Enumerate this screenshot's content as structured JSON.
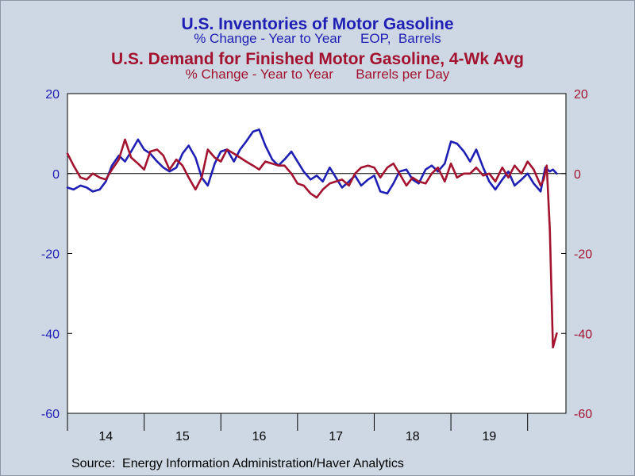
{
  "titles": {
    "line1": "U.S. Inventories of Motor Gasoline",
    "line2": "% Change - Year to Year     EOP,  Barrels",
    "line3": "U.S. Demand for Finished Motor Gasoline, 4-Wk Avg",
    "line4": "% Change - Year to Year      Barrels per Day"
  },
  "source": "Source:  Energy Information Administration/Haver Analytics",
  "colors": {
    "background": "#cdd8e4",
    "plot_area": "#ffffff",
    "inventories": "#1f1fb4",
    "demand": "#a3122f"
  },
  "chart_data": {
    "type": "line",
    "xlim": [
      2014.0,
      2020.5
    ],
    "x_ticks": [
      2014,
      2015,
      2016,
      2017,
      2018,
      2019,
      2020
    ],
    "x_labels": [
      "14",
      "15",
      "16",
      "17",
      "18",
      "19"
    ],
    "y_left": {
      "range": [
        -60,
        20
      ],
      "ticks": [
        20,
        0,
        -20,
        -40,
        -60
      ]
    },
    "y_right": {
      "range": [
        -60,
        20
      ],
      "ticks": [
        20,
        0,
        -20,
        -40,
        -60
      ]
    },
    "zero_line": true,
    "grid": false,
    "series": [
      {
        "color": "#1f1fb4",
        "axis": "left",
        "x": [
          2014.0,
          2014.08,
          2014.17,
          2014.25,
          2014.33,
          2014.42,
          2014.5,
          2014.58,
          2014.67,
          2014.75,
          2014.83,
          2014.92,
          2015.0,
          2015.08,
          2015.17,
          2015.25,
          2015.33,
          2015.42,
          2015.5,
          2015.58,
          2015.67,
          2015.75,
          2015.83,
          2015.92,
          2016.0,
          2016.08,
          2016.17,
          2016.25,
          2016.33,
          2016.42,
          2016.5,
          2016.58,
          2016.67,
          2016.75,
          2016.83,
          2016.92,
          2017.0,
          2017.08,
          2017.17,
          2017.25,
          2017.33,
          2017.42,
          2017.5,
          2017.58,
          2017.67,
          2017.75,
          2017.83,
          2017.92,
          2018.0,
          2018.08,
          2018.17,
          2018.25,
          2018.33,
          2018.42,
          2018.5,
          2018.58,
          2018.67,
          2018.75,
          2018.83,
          2018.92,
          2019.0,
          2019.08,
          2019.17,
          2019.25,
          2019.33,
          2019.42,
          2019.5,
          2019.58,
          2019.67,
          2019.75,
          2019.83,
          2019.92,
          2020.0,
          2020.08,
          2020.17,
          2020.23,
          2020.29,
          2020.33,
          2020.38
        ],
        "values": [
          -3.5,
          -4.0,
          -3.0,
          -3.5,
          -4.5,
          -4.0,
          -2.0,
          2.0,
          4.5,
          3.0,
          5.5,
          8.5,
          6.0,
          5.0,
          3.0,
          1.5,
          0.5,
          1.5,
          5.0,
          7.0,
          4.0,
          -1.0,
          -3.0,
          2.5,
          5.5,
          6.0,
          3.0,
          6.0,
          8.0,
          10.5,
          11.0,
          7.0,
          3.5,
          2.0,
          3.5,
          5.5,
          3.0,
          0.5,
          -1.5,
          -0.5,
          -2.0,
          1.5,
          -1.0,
          -3.5,
          -2.0,
          -0.5,
          -3.0,
          -1.5,
          -0.5,
          -4.5,
          -5.0,
          -2.5,
          0.5,
          1.0,
          -1.5,
          -2.5,
          1.0,
          2.0,
          0.5,
          2.5,
          8.0,
          7.5,
          5.5,
          3.0,
          6.0,
          1.5,
          -2.0,
          -4.0,
          -1.5,
          0.5,
          -3.0,
          -1.5,
          0.0,
          -2.5,
          -4.5,
          1.5,
          0.5,
          1.0,
          0.0
        ]
      },
      {
        "color": "#a3122f",
        "axis": "left",
        "x": [
          2014.0,
          2014.08,
          2014.17,
          2014.25,
          2014.33,
          2014.42,
          2014.5,
          2014.58,
          2014.67,
          2014.75,
          2014.83,
          2014.92,
          2015.0,
          2015.08,
          2015.17,
          2015.25,
          2015.33,
          2015.42,
          2015.5,
          2015.58,
          2015.67,
          2015.75,
          2015.83,
          2015.92,
          2016.0,
          2016.08,
          2016.17,
          2016.25,
          2016.33,
          2016.42,
          2016.5,
          2016.58,
          2016.67,
          2016.75,
          2016.83,
          2016.92,
          2017.0,
          2017.08,
          2017.17,
          2017.25,
          2017.33,
          2017.42,
          2017.5,
          2017.58,
          2017.67,
          2017.75,
          2017.83,
          2017.92,
          2018.0,
          2018.08,
          2018.17,
          2018.25,
          2018.33,
          2018.42,
          2018.5,
          2018.58,
          2018.67,
          2018.75,
          2018.83,
          2018.92,
          2019.0,
          2019.08,
          2019.17,
          2019.25,
          2019.33,
          2019.42,
          2019.5,
          2019.58,
          2019.67,
          2019.75,
          2019.83,
          2019.92,
          2020.0,
          2020.08,
          2020.17,
          2020.21,
          2020.25,
          2020.29,
          2020.33,
          2020.38
        ],
        "values": [
          5.0,
          2.0,
          -1.0,
          -1.5,
          0.0,
          -1.0,
          -1.5,
          1.0,
          3.5,
          8.5,
          4.0,
          2.5,
          1.0,
          5.5,
          6.0,
          4.5,
          1.0,
          3.5,
          2.0,
          -1.0,
          -4.0,
          -1.0,
          6.0,
          4.0,
          3.0,
          6.0,
          5.0,
          4.0,
          3.0,
          2.0,
          1.0,
          3.0,
          2.5,
          2.0,
          2.0,
          0.0,
          -2.5,
          -3.0,
          -5.0,
          -6.0,
          -4.0,
          -2.5,
          -2.0,
          -1.5,
          -3.0,
          0.0,
          1.5,
          2.0,
          1.5,
          -1.0,
          1.5,
          2.5,
          0.0,
          -3.0,
          -1.0,
          -2.0,
          -2.5,
          0.0,
          1.5,
          -2.0,
          2.5,
          -1.0,
          0.0,
          0.0,
          1.5,
          -0.5,
          0.0,
          -2.0,
          1.5,
          -1.0,
          2.0,
          0.0,
          3.0,
          1.0,
          -3.0,
          -1.5,
          2.0,
          -14.0,
          -43.5,
          -40.0
        ]
      }
    ]
  }
}
